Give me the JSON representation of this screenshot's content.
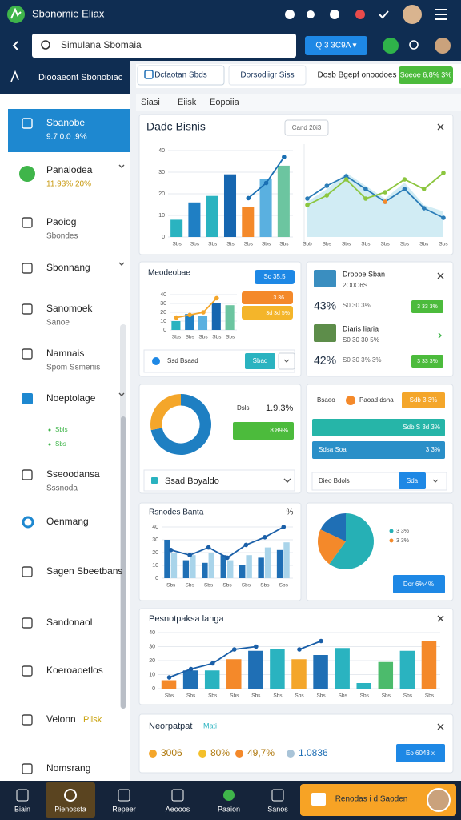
{
  "app_bar": {
    "title": "Sbonomie Eliax"
  },
  "search": {
    "placeholder": "Simulana Sbomaia",
    "button": "Q 3 3C9A ▾"
  },
  "sidebar": {
    "header": "Diooaeont Sbonobiac",
    "items": [
      {
        "label": "Sbanobe",
        "sub": "9.7 0.0 ,9%"
      },
      {
        "label": "Panalodea",
        "sub": "11.93% 20%"
      },
      {
        "label": "Paoiog",
        "sub": "Sbondes"
      },
      {
        "label": "Sbonnang"
      },
      {
        "label": "Sanomoek",
        "sub": "Sanoe"
      },
      {
        "label": "Namnais",
        "sub": "Spom Ssmenis"
      },
      {
        "label": "Noeptolage",
        "children": [
          "Sbls",
          "Sbs"
        ]
      },
      {
        "label": "Sseoodansa",
        "sub": "Sssnoda"
      },
      {
        "label": "Oenmang"
      },
      {
        "label": "Sagen Sbeetbans"
      },
      {
        "label": "Sandonaol"
      },
      {
        "label": "Koeroaoetlos"
      },
      {
        "label": "Velonn",
        "badge": "Piisk"
      },
      {
        "label": "Nomsrang"
      }
    ]
  },
  "tabs": [
    "Dcfaotan Sbds",
    "Dorsodiigr Siss",
    "Dosb Bgepf onoodoes"
  ],
  "tab_button": "Soeoe 6.8% 3%",
  "subtabs": [
    "Siasi",
    "Eiisk",
    "Eopoiia"
  ],
  "cards": {
    "overview": {
      "title": "Dadc Bisnis",
      "button": "Cand 20i3",
      "bar_chart": {
        "type": "bar",
        "ylim": [
          0,
          40
        ],
        "yticks": [
          0,
          10,
          20,
          30,
          40
        ],
        "categories": [
          "Sbs",
          "Sbs",
          "Sbs",
          "Sts",
          "Sbs",
          "Sbs",
          "Sbs"
        ],
        "series": [
          {
            "colors": [
              "#2ab3c0",
              "#1f7fc4",
              "#2ab3c0",
              "#1666b0",
              "#f4892a",
              "#5ab0e0",
              "#6cc5a0"
            ],
            "values": [
              8,
              16,
              19,
              29,
              14,
              27,
              33
            ]
          },
          {
            "style": "line",
            "color": "#1a6fb3",
            "values": [
              null,
              null,
              null,
              null,
              18,
              25,
              37
            ]
          }
        ]
      },
      "line_chart": {
        "type": "line",
        "ylim": [
          0,
          50
        ],
        "categories": [
          "Sbb",
          "Sbs",
          "Sbs",
          "Sbs",
          "Sbs",
          "Sbs",
          "Sbs",
          "Sbs"
        ],
        "series": [
          {
            "style": "area",
            "color": "#7cc8e0",
            "values": [
              22,
              30,
              40,
              32,
              24,
              34,
              20,
              16
            ]
          },
          {
            "style": "line",
            "color": "#2b7db8",
            "values": [
              24,
              32,
              38,
              30,
              22,
              30,
              18,
              12
            ]
          },
          {
            "style": "line",
            "color": "#8cc63f",
            "values": [
              20,
              26,
              36,
              24,
              28,
              36,
              30,
              40
            ]
          },
          {
            "style": "line",
            "color": "#f4892a",
            "values": [
              null,
              null,
              null,
              null,
              22,
              null,
              null,
              null
            ]
          }
        ]
      }
    },
    "metrics": {
      "title": "Meodeobae",
      "badge": "Sc 35.5",
      "pill1": "3 36",
      "pill2": "3d 3d 5%",
      "footer": "Ssd Bsaad",
      "footer_button": "Sbad",
      "chart": {
        "type": "bar",
        "ylim": [
          0,
          40
        ],
        "yticks": [
          0,
          10,
          20,
          30,
          40
        ],
        "categories": [
          "Sbs",
          "Sbs",
          "Sbs",
          "Sbs",
          "Sbs"
        ],
        "series": [
          {
            "colors": [
              "#2ab3c0",
              "#1f7fc4",
              "#5ab0e0",
              "#1666b0",
              "#6cc5a0"
            ],
            "values": [
              10,
              18,
              16,
              30,
              28
            ]
          },
          {
            "style": "line",
            "color": "#f4a62a",
            "values": [
              14,
              17,
              20,
              36,
              null
            ]
          }
        ]
      }
    },
    "products": {
      "items": [
        {
          "title": "Droooe Sban",
          "sub": "2O0O6S",
          "pct": "43%",
          "detail": "S0 30 3%",
          "badge": "3 33 3%"
        },
        {
          "title": "Diaris Iiaria",
          "sub": "S0 30 30 5%",
          "pct": "42%",
          "detail": "S0 30 3% 3%",
          "badge": "3 33 3%"
        }
      ]
    },
    "share": {
      "label": "Dsls",
      "value": "1.9.3%",
      "bar": "8.89%",
      "footer": "Ssad Boyaldo",
      "donut": {
        "type": "donut",
        "values": [
          72,
          28
        ],
        "colors": [
          "#1e7fc2",
          "#f4a62a"
        ]
      }
    },
    "progress": {
      "label": "Bsaeo",
      "sub": "Paoad dsha",
      "button": "Sdb 3 3%",
      "bar1": "Sdb S 3d 3%",
      "bar2": "Sdsa Soa",
      "bar2_value": "3 3%",
      "footer": "Dieo Bdols",
      "footer_button": "Sda"
    },
    "trend": {
      "title": "Rsnodes Banta",
      "corner": "%",
      "chart": {
        "type": "bar",
        "ylim": [
          0,
          45
        ],
        "yticks": [
          0,
          10,
          20,
          30,
          40
        ],
        "categories": [
          "Sbs",
          "Sbs",
          "Sbs",
          "Sbs",
          "Sbs",
          "Sbs",
          "Sbs"
        ],
        "series": [
          {
            "color": "#1f6fb5",
            "values": [
              30,
              14,
              12,
              18,
              10,
              16,
              22
            ]
          },
          {
            "color": "#a9d4ea",
            "values": [
              20,
              18,
              20,
              14,
              18,
              24,
              28
            ]
          },
          {
            "style": "line",
            "color": "#1a5fa8",
            "values": [
              22,
              18,
              24,
              16,
              26,
              32,
              40
            ]
          }
        ]
      }
    },
    "breakdown": {
      "legend": [
        "3 3%",
        "3 3%"
      ],
      "button": "Dor 6%4%",
      "pie": {
        "type": "pie",
        "values": [
          60,
          22,
          18
        ],
        "colors": [
          "#26b0b5",
          "#f4892a",
          "#1f6fb5"
        ]
      }
    },
    "performance": {
      "title": "Pesnotpaksa langa",
      "chart": {
        "type": "bar",
        "ylim": [
          0,
          40
        ],
        "yticks": [
          0,
          10,
          20,
          30,
          40
        ],
        "categories": [
          "Sbs",
          "Sbs",
          "Sbs",
          "Sbs",
          "Sbs",
          "Sbs",
          "Sbs",
          "Sbs",
          "Sbs",
          "Sbs",
          "Sbs",
          "Sbs",
          "Sbs"
        ],
        "series": [
          {
            "colors": [
              "#f4892a",
              "#1f6fb5",
              "#2ab3c0",
              "#f4892a",
              "#1f6fb5",
              "#2ab3c0",
              "#f4a62a",
              "#1f6fb5",
              "#2ab3c0",
              "#2ab3c0",
              "#4cbb6c",
              "#2ab3c0",
              "#f4892a"
            ],
            "values": [
              6,
              13,
              13,
              21,
              27,
              28,
              21,
              24,
              29,
              4,
              19,
              27,
              34
            ]
          },
          {
            "style": "line",
            "color": "#1a5fa8",
            "values": [
              8,
              14,
              18,
              28,
              30,
              null,
              28,
              34,
              null,
              null,
              null,
              null,
              null
            ]
          }
        ]
      }
    },
    "summary": {
      "title": "Neorpatpat",
      "title_badge": "Mati",
      "chips": [
        "3006",
        "80%",
        "49,7%",
        "1.0836"
      ],
      "button": "Eo 6043 x"
    }
  },
  "bottom_nav": {
    "items": [
      "Biain",
      "Pienossta",
      "Repeer",
      "Aeooos",
      "Paaion",
      "Sanos"
    ],
    "cta": "Renodas i d Saoden"
  }
}
